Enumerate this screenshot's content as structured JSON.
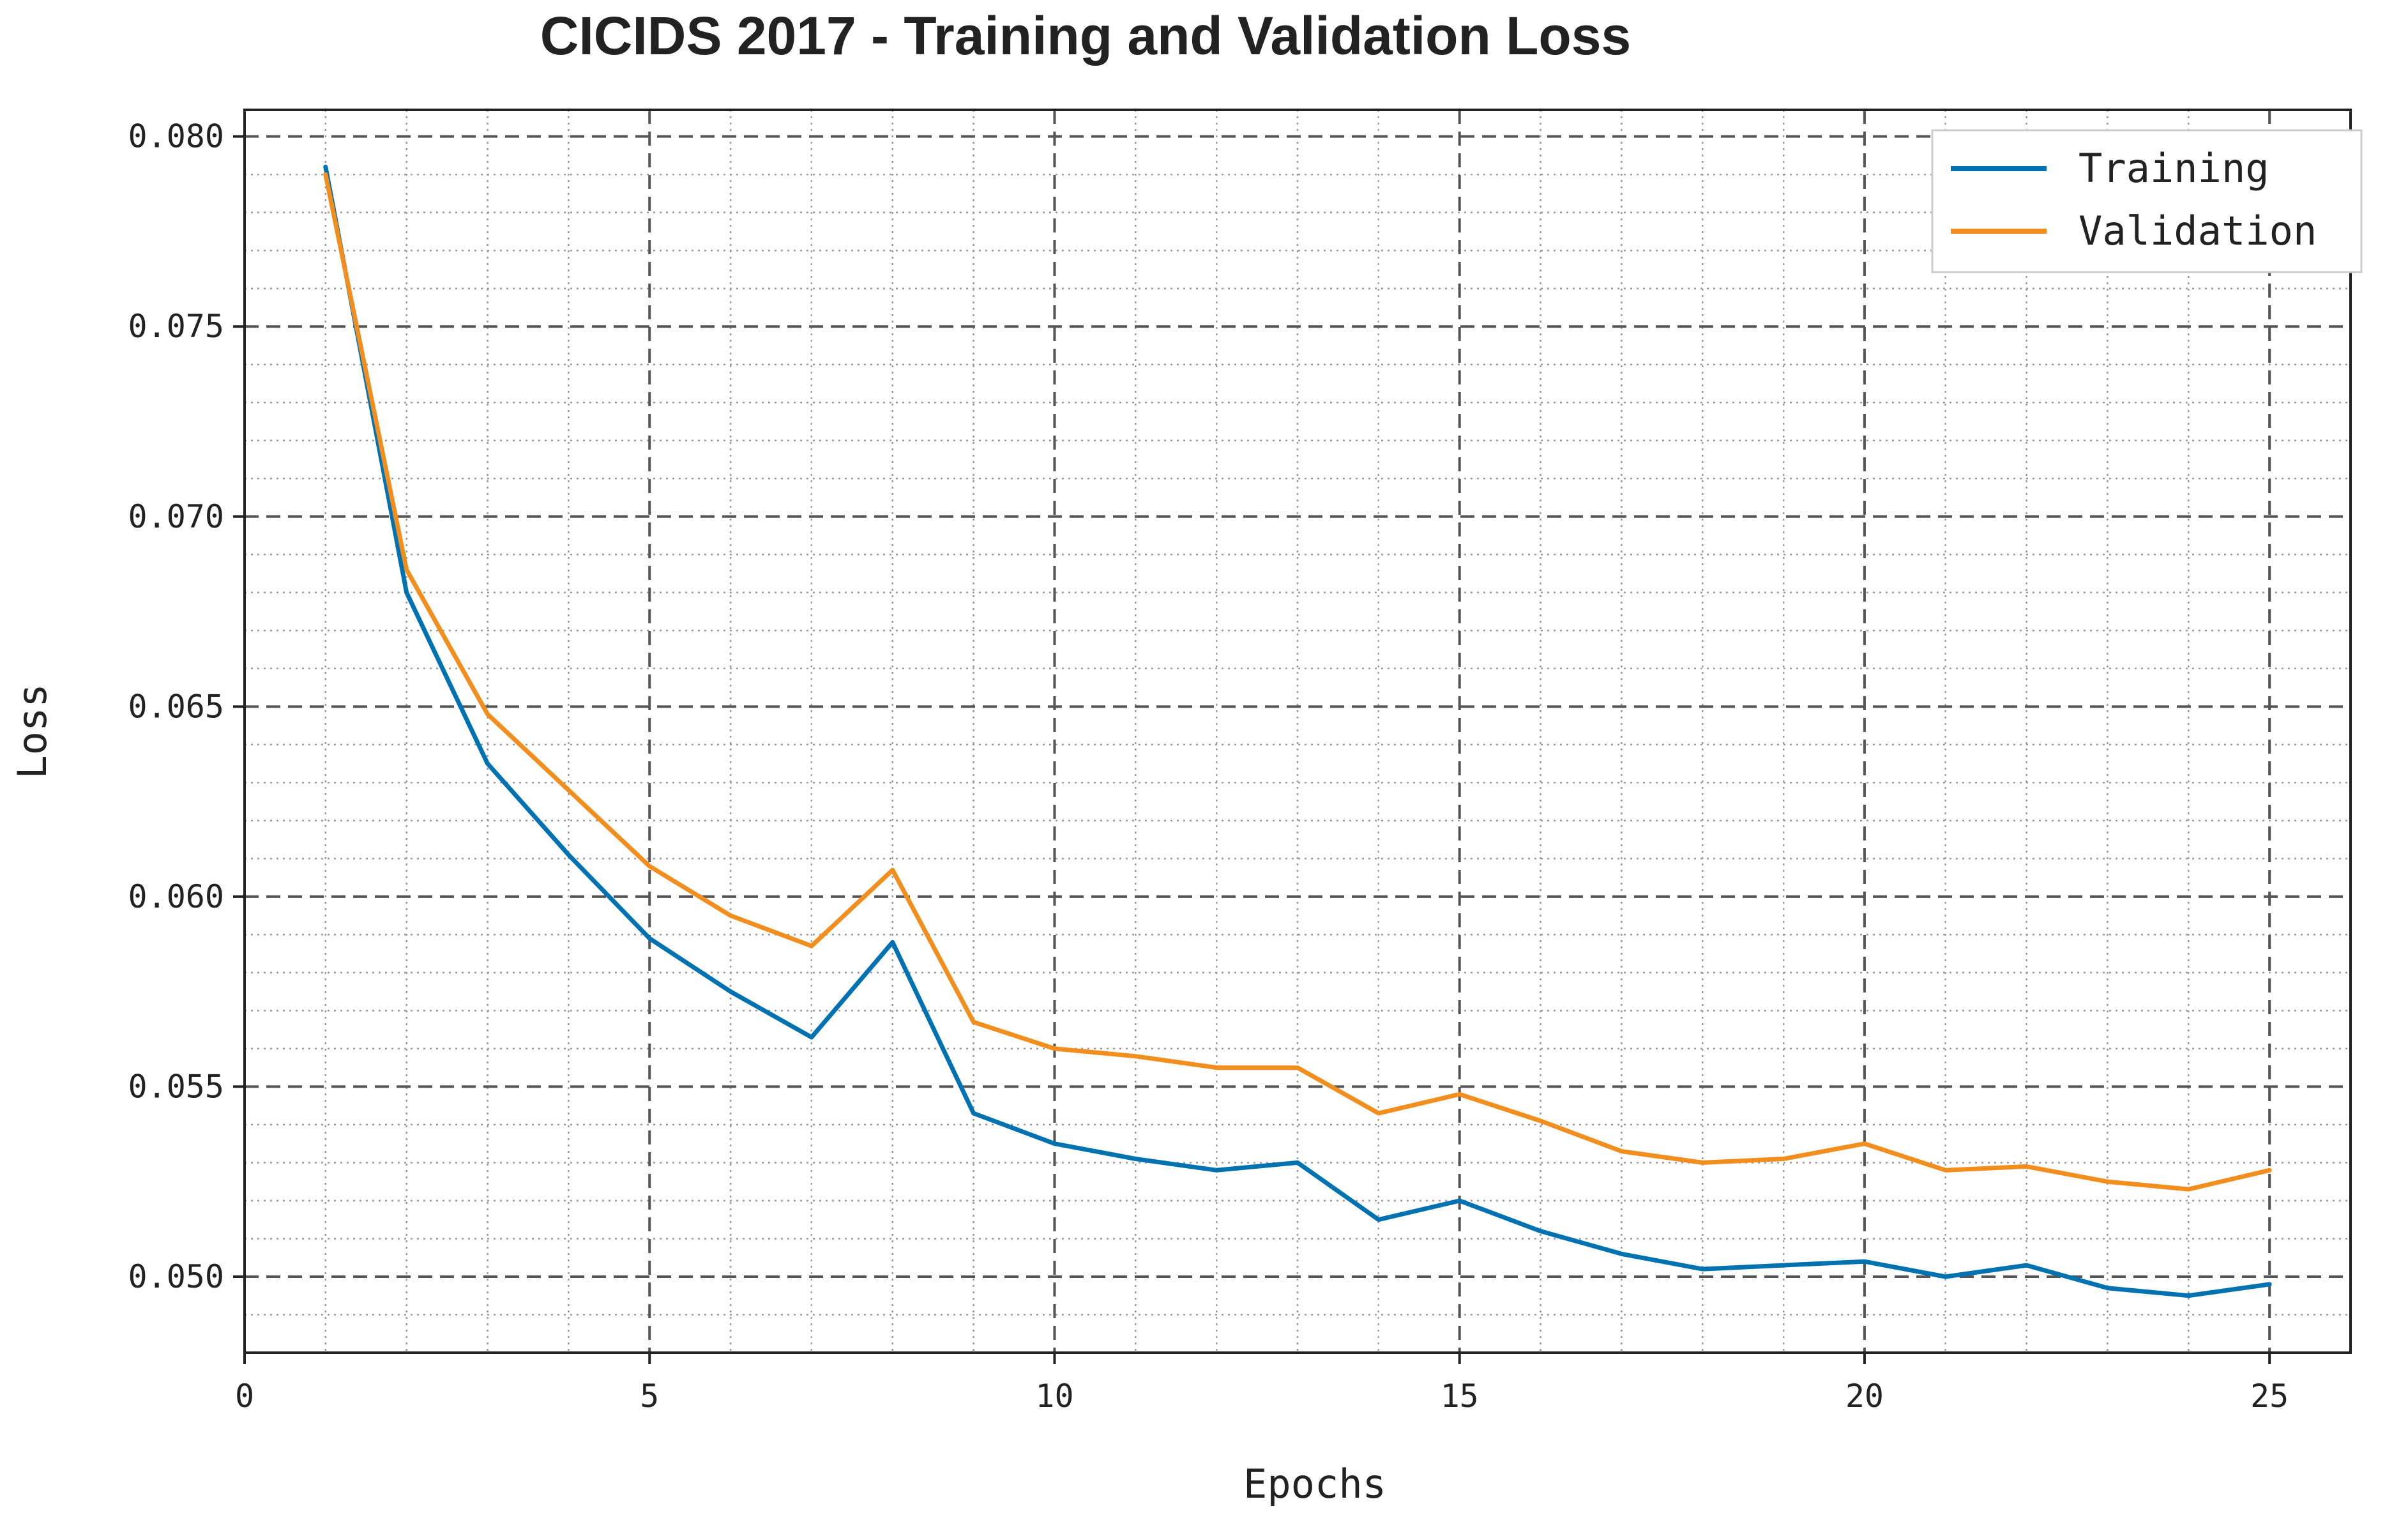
{
  "chart_data": {
    "type": "line",
    "title": "CICIDS 2017  - Training and Validation Loss",
    "xlabel": "Epochs",
    "ylabel": "Loss",
    "xlim": [
      0,
      26
    ],
    "ylim": [
      0.048,
      0.0807
    ],
    "xticks": [
      0,
      5,
      10,
      15,
      20,
      25
    ],
    "xtick_labels": [
      "0",
      "5",
      "10",
      "15",
      "20",
      "25"
    ],
    "yticks": [
      0.05,
      0.055,
      0.06,
      0.065,
      0.07,
      0.075,
      0.08
    ],
    "ytick_labels": [
      "0.050",
      "0.055",
      "0.060",
      "0.065",
      "0.070",
      "0.075",
      "0.080"
    ],
    "x_minor_step": 1,
    "y_minor_step": 0.001,
    "grid": true,
    "legend_position": "top-right",
    "x": [
      1,
      2,
      3,
      4,
      5,
      6,
      7,
      8,
      9,
      10,
      11,
      12,
      13,
      14,
      15,
      16,
      17,
      18,
      19,
      20,
      21,
      22,
      23,
      24,
      25
    ],
    "series": [
      {
        "name": "Training",
        "color": "#0072B2",
        "values": [
          0.0792,
          0.068,
          0.0635,
          0.0611,
          0.0589,
          0.0575,
          0.0563,
          0.0588,
          0.0543,
          0.0535,
          0.0531,
          0.0528,
          0.053,
          0.0515,
          0.052,
          0.0512,
          0.0506,
          0.0502,
          0.0503,
          0.0504,
          0.05,
          0.0503,
          0.0497,
          0.0495,
          0.0498
        ]
      },
      {
        "name": "Validation",
        "color": "#F28E1E",
        "values": [
          0.079,
          0.0686,
          0.0648,
          0.0628,
          0.0608,
          0.0595,
          0.0587,
          0.0607,
          0.0567,
          0.056,
          0.0558,
          0.0555,
          0.0555,
          0.0543,
          0.0548,
          0.0541,
          0.0533,
          0.053,
          0.0531,
          0.0535,
          0.0528,
          0.0529,
          0.0525,
          0.0523,
          0.0528
        ]
      }
    ]
  }
}
